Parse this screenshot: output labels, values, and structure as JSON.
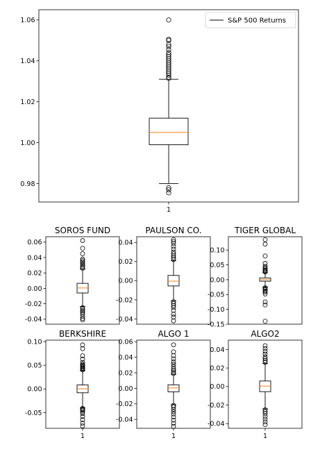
{
  "chart_data": [
    {
      "type": "box",
      "title": "",
      "legend": {
        "label": "S&P 500 Returns",
        "placement": "top-right"
      },
      "xticks": [
        "1"
      ],
      "ylim": [
        0.971,
        1.065
      ],
      "yticks": [
        0.98,
        1.0,
        1.02,
        1.04,
        1.06
      ],
      "ytick_labels": [
        "0.98",
        "1.00",
        "1.02",
        "1.04",
        "1.06"
      ],
      "box": {
        "q1": 0.999,
        "median": 1.005,
        "q3": 1.012,
        "whisker_low": 0.98,
        "whisker_high": 1.031
      },
      "outliers": [
        1.0315,
        1.032,
        1.033,
        1.034,
        1.035,
        1.036,
        1.037,
        1.038,
        1.039,
        1.04,
        1.041,
        1.042,
        1.043,
        1.044,
        1.0455,
        1.047,
        1.048,
        1.05,
        1.0505,
        1.06,
        0.978,
        0.977,
        0.9755
      ]
    },
    {
      "type": "box",
      "title": "SOROS FUND",
      "xticks": [],
      "ylim": [
        -0.0465,
        0.067
      ],
      "yticks": [
        -0.04,
        -0.02,
        0.0,
        0.02,
        0.04,
        0.06
      ],
      "ytick_labels": [
        "-0.04",
        "-0.02",
        "0.00",
        "0.02",
        "0.04",
        "0.06"
      ],
      "box": {
        "q1": -0.006,
        "median": 0.0005,
        "q3": 0.0065,
        "whisker_low": -0.0235,
        "whisker_high": 0.025
      },
      "outliers": [
        0.026,
        0.028,
        0.03,
        0.032,
        0.034,
        0.036,
        0.038,
        0.045,
        0.052,
        0.062,
        -0.025,
        -0.027,
        -0.029,
        -0.031,
        -0.033,
        -0.036,
        -0.039,
        -0.041
      ]
    },
    {
      "type": "box",
      "title": "PAULSON CO.",
      "xticks": [],
      "ylim": [
        -0.0455,
        0.046
      ],
      "yticks": [
        -0.04,
        -0.02,
        0.0,
        0.02,
        0.04
      ],
      "ytick_labels": [
        "-0.04",
        "-0.02",
        "0.00",
        "0.02",
        "0.04"
      ],
      "box": {
        "q1": -0.0055,
        "median": -0.0005,
        "q3": 0.0055,
        "whisker_low": -0.021,
        "whisker_high": 0.021
      },
      "outliers": [
        0.022,
        0.024,
        0.026,
        0.028,
        0.03,
        0.033,
        0.036,
        0.039,
        0.041,
        0.043,
        -0.022,
        -0.024,
        -0.026,
        -0.028,
        -0.031,
        -0.035,
        -0.038,
        -0.042
      ]
    },
    {
      "type": "box",
      "title": "TIGER GLOBAL",
      "xticks": [],
      "ylim": [
        -0.15,
        0.145
      ],
      "yticks": [
        -0.15,
        -0.1,
        -0.05,
        0.0,
        0.05,
        0.1
      ],
      "ytick_labels": [
        "-0.15",
        "-0.10",
        "-0.05",
        "0.00",
        "0.05",
        "0.10"
      ],
      "box": {
        "q1": -0.005,
        "median": 0.0,
        "q3": 0.006,
        "whisker_low": -0.025,
        "whisker_high": 0.025
      },
      "outliers": [
        0.026,
        0.029,
        0.032,
        0.036,
        0.04,
        0.045,
        0.055,
        0.08,
        0.12,
        0.135,
        -0.027,
        -0.03,
        -0.034,
        -0.038,
        -0.042,
        -0.048,
        -0.075,
        -0.085,
        -0.14
      ]
    },
    {
      "type": "box",
      "title": "BERKSHIRE",
      "xticks": [
        "1"
      ],
      "ylim": [
        -0.083,
        0.103
      ],
      "yticks": [
        -0.05,
        0.0,
        0.05,
        0.1
      ],
      "ytick_labels": [
        "-0.05",
        "0.00",
        "0.05",
        "0.10"
      ],
      "box": {
        "q1": -0.008,
        "median": 0.0005,
        "q3": 0.0085,
        "whisker_low": -0.04,
        "whisker_high": 0.039
      },
      "outliers": [
        0.04,
        0.042,
        0.044,
        0.046,
        0.048,
        0.05,
        0.052,
        0.056,
        0.063,
        0.07,
        0.085,
        0.093,
        -0.041,
        -0.043,
        -0.045,
        -0.048,
        -0.052,
        -0.058,
        -0.065,
        -0.072,
        -0.078
      ]
    },
    {
      "type": "box",
      "title": "ALGO 1",
      "xticks": [
        "1"
      ],
      "ylim": [
        -0.0515,
        0.062
      ],
      "yticks": [
        -0.04,
        -0.02,
        0.0,
        0.02,
        0.04,
        0.06
      ],
      "ytick_labels": [
        "-0.04",
        "-0.02",
        "0.00",
        "0.02",
        "0.04",
        "0.06"
      ],
      "box": {
        "q1": -0.0045,
        "median": 0.0005,
        "q3": 0.0045,
        "whisker_low": -0.021,
        "whisker_high": 0.018
      },
      "outliers": [
        0.019,
        0.021,
        0.023,
        0.025,
        0.028,
        0.031,
        0.034,
        0.038,
        0.042,
        0.047,
        0.056,
        -0.022,
        -0.024,
        -0.027,
        -0.03,
        -0.033,
        -0.037,
        -0.041,
        -0.045,
        -0.049
      ]
    },
    {
      "type": "box",
      "title": "ALGO2",
      "xticks": [
        "1"
      ],
      "ylim": [
        -0.045,
        0.05
      ],
      "yticks": [
        -0.04,
        -0.02,
        0.0,
        0.02,
        0.04
      ],
      "ytick_labels": [
        "-0.04",
        "-0.02",
        "0.00",
        "0.02",
        "0.04"
      ],
      "box": {
        "q1": -0.0055,
        "median": 0.0005,
        "q3": 0.006,
        "whisker_low": -0.024,
        "whisker_high": 0.025
      },
      "outliers": [
        0.026,
        0.028,
        0.03,
        0.032,
        0.035,
        0.038,
        0.041,
        0.044,
        -0.025,
        -0.027,
        -0.029,
        -0.032,
        -0.035,
        -0.038,
        -0.041
      ]
    }
  ],
  "colors": {
    "median": "#ff7f0e",
    "line": "#000000",
    "background": "#ffffff"
  }
}
